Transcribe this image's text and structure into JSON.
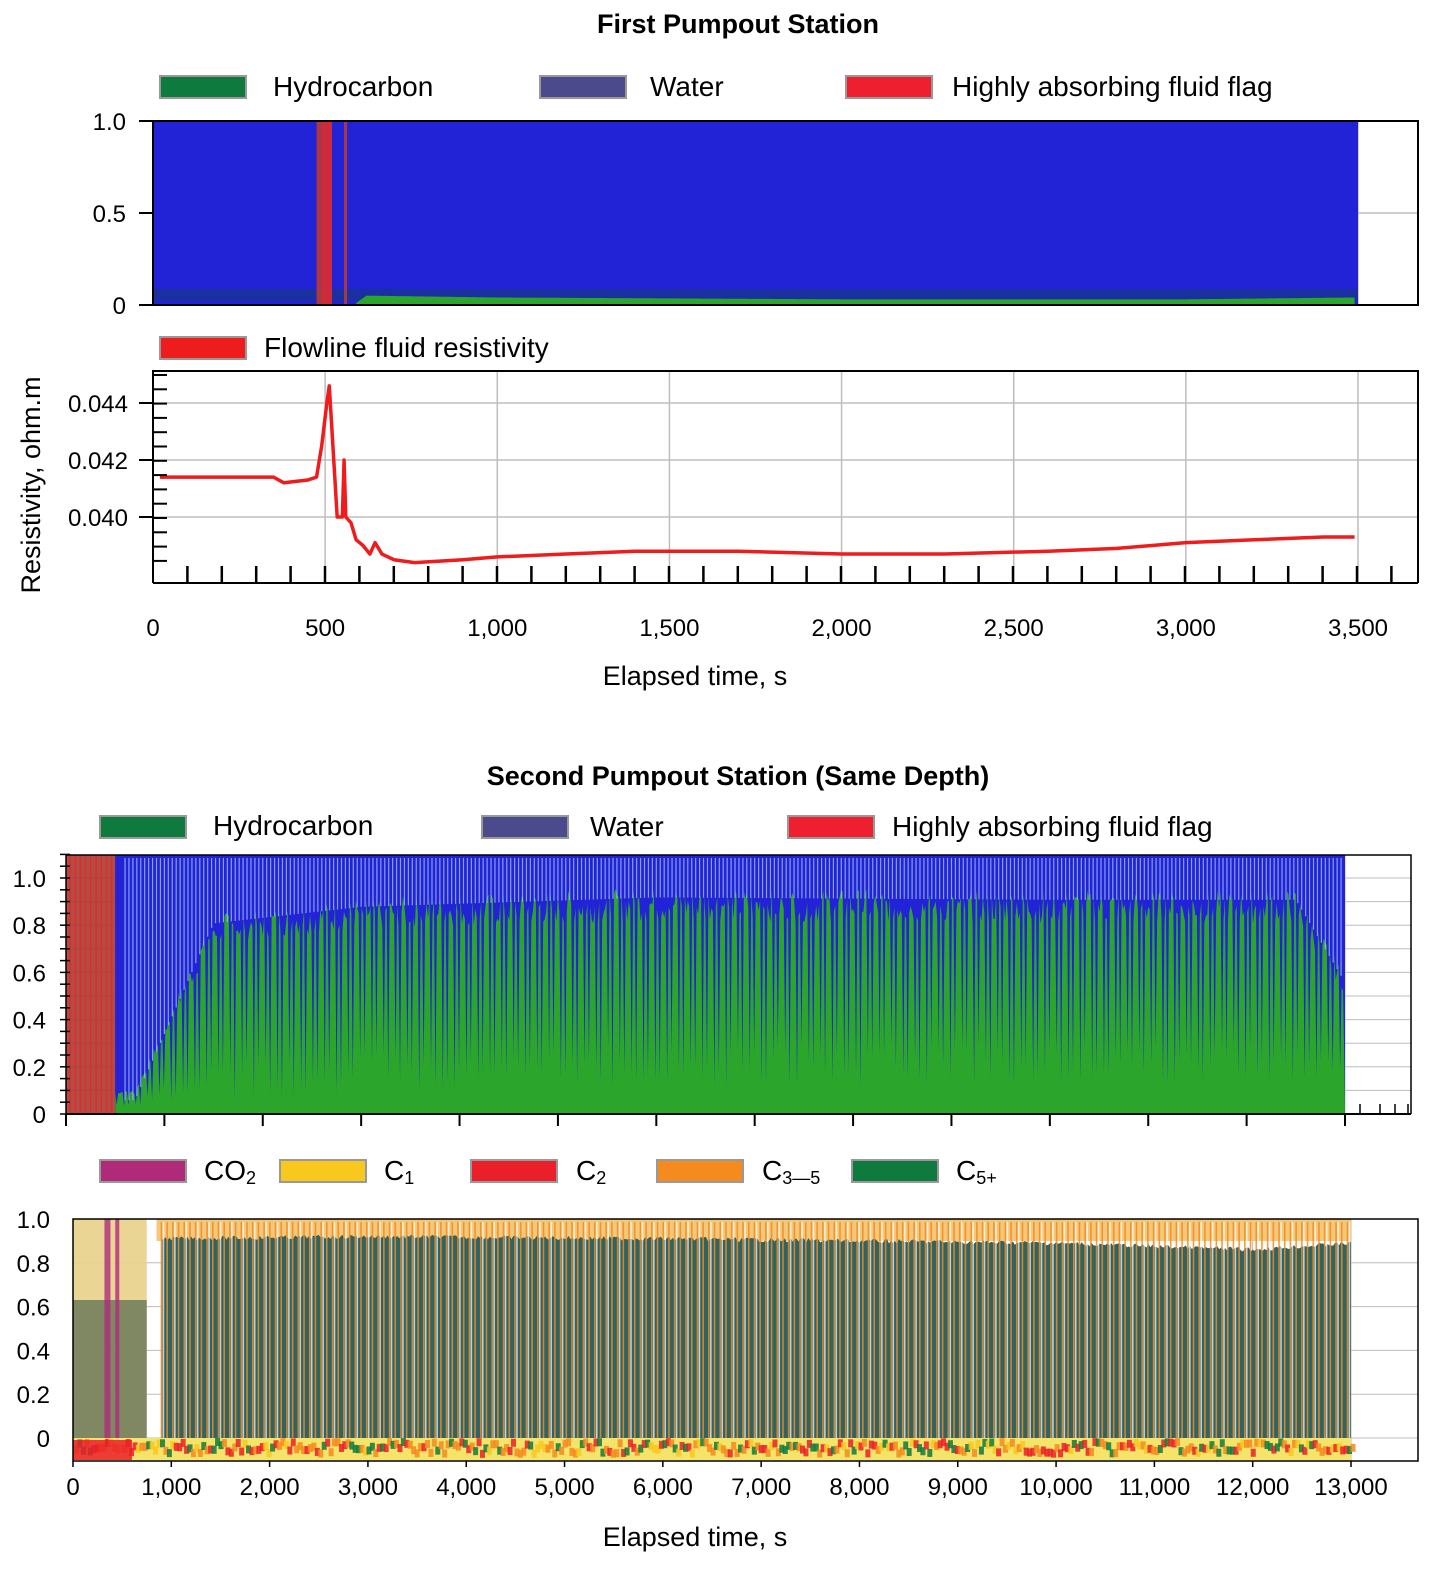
{
  "colors": {
    "hydrocarbon": "#0f7a3e",
    "water": "#4a4a8c",
    "flag": "#ee2030",
    "fill_water": "#2222d6",
    "fill_hydrocarbon": "#2ca52c",
    "resistivity": "#ee1c1c",
    "co2": "#b02a7a",
    "c1": "#f9c81e",
    "c2": "#ea1f2a",
    "c35": "#f58a1f",
    "c5plus": "#0f7a3e",
    "fill_c5plus": "#2f6465",
    "grid": "#bdbdbd"
  },
  "first_station": {
    "title": "First Pumpout Station",
    "legend": [
      "Hydrocarbon",
      "Water",
      "Highly absorbing fluid flag"
    ],
    "resistivity_legend": "Flowline fluid resistivity",
    "ylabel": "Resistivity, ohm.m",
    "xlabel": "Elapsed time, s"
  },
  "second_station": {
    "title": "Second Pumpout Station (Same Depth)",
    "legend": [
      "Hydrocarbon",
      "Water",
      "Highly absorbing fluid flag"
    ],
    "composition_legend": [
      "CO",
      "C",
      "C",
      "C",
      "C"
    ],
    "composition_legend_sub": [
      "2",
      "1",
      "2",
      "3—5",
      "5+"
    ],
    "xlabel": "Elapsed time, s"
  },
  "chart_data": [
    {
      "type": "area",
      "title": "First Pumpout Station",
      "series_names": [
        "Hydrocarbon",
        "Water",
        "Highly absorbing fluid flag"
      ],
      "xlim": [
        0,
        3500
      ],
      "ylim": [
        0,
        1.0
      ],
      "yticks": [
        "1.0",
        "0.5",
        "0"
      ],
      "hydrocarbon_fraction": [
        [
          0,
          0.0
        ],
        [
          590,
          0.0
        ],
        [
          620,
          0.04
        ],
        [
          1000,
          0.03
        ],
        [
          2000,
          0.02
        ],
        [
          3000,
          0.02
        ],
        [
          3490,
          0.03
        ]
      ],
      "flag_intervals": [
        [
          475,
          520
        ],
        [
          555,
          560
        ]
      ],
      "data_end": 3490,
      "grid": true
    },
    {
      "type": "line",
      "series": [
        {
          "name": "Flowline fluid resistivity",
          "points": [
            [
              20,
              0.0414
            ],
            [
              350,
              0.0414
            ],
            [
              380,
              0.0412
            ],
            [
              450,
              0.0413
            ],
            [
              475,
              0.0414
            ],
            [
              490,
              0.0425
            ],
            [
              505,
              0.044
            ],
            [
              512,
              0.0446
            ],
            [
              520,
              0.043
            ],
            [
              535,
              0.04
            ],
            [
              550,
              0.04
            ],
            [
              555,
              0.042
            ],
            [
              560,
              0.04
            ],
            [
              575,
              0.0398
            ],
            [
              590,
              0.0392
            ],
            [
              610,
              0.039
            ],
            [
              630,
              0.0387
            ],
            [
              645,
              0.0391
            ],
            [
              665,
              0.0387
            ],
            [
              700,
              0.0385
            ],
            [
              760,
              0.0384
            ],
            [
              900,
              0.0385
            ],
            [
              1000,
              0.0386
            ],
            [
              1200,
              0.0387
            ],
            [
              1400,
              0.0388
            ],
            [
              1700,
              0.0388
            ],
            [
              2000,
              0.0387
            ],
            [
              2300,
              0.0387
            ],
            [
              2600,
              0.0388
            ],
            [
              2800,
              0.0389
            ],
            [
              3000,
              0.0391
            ],
            [
              3200,
              0.0392
            ],
            [
              3400,
              0.0393
            ],
            [
              3490,
              0.0393
            ]
          ]
        }
      ],
      "xlabel": "Elapsed time, s",
      "ylabel": "Resistivity, ohm.m",
      "xlim": [
        0,
        3700
      ],
      "ylim": [
        0.0378,
        0.0453
      ],
      "xticks": [
        "0",
        "500",
        "1,000",
        "1,500",
        "2,000",
        "2,500",
        "3,000",
        "3,500"
      ],
      "yticks": [
        "0.044",
        "0.042",
        "0.040"
      ],
      "grid": true
    },
    {
      "type": "area",
      "title": "Second Pumpout Station (Same Depth)",
      "series_names": [
        "Hydrocarbon",
        "Water",
        "Highly absorbing fluid flag"
      ],
      "xlim": [
        0,
        13700
      ],
      "ylim": [
        0,
        1.1
      ],
      "yticks": [
        "1.0",
        "0.8",
        "0.6",
        "0.4",
        "0.2",
        "0"
      ],
      "flag_interval": [
        0,
        500
      ],
      "hydrocarbon_base_fraction": [
        [
          500,
          0.03
        ],
        [
          3000,
          0.08
        ],
        [
          6000,
          0.12
        ],
        [
          13000,
          0.12
        ]
      ],
      "hydrocarbon_peak_fraction": [
        [
          700,
          0.1
        ],
        [
          1500,
          0.85
        ],
        [
          3000,
          0.92
        ],
        [
          6000,
          0.96
        ],
        [
          10000,
          0.95
        ],
        [
          12500,
          0.95
        ],
        [
          13000,
          0.6
        ]
      ],
      "data_end": 13000,
      "grid": true
    },
    {
      "type": "area",
      "series_names": [
        "CO2",
        "C1",
        "C2",
        "C3—5",
        "C5+"
      ],
      "xlim": [
        0,
        13700
      ],
      "ylim": [
        -0.1,
        1.0
      ],
      "xticks": [
        "0",
        "1,000",
        "2,000",
        "3,000",
        "4,000",
        "5,000",
        "6,000",
        "7,000",
        "8,000",
        "9,000",
        "10,000",
        "11,000",
        "12,000",
        "13,000"
      ],
      "yticks": [
        "1.0",
        "0.8",
        "0.6",
        "0.4",
        "0.2",
        "0"
      ],
      "xlabel": "Elapsed time, s",
      "c5plus_fraction": [
        [
          900,
          0.92
        ],
        [
          3000,
          0.93
        ],
        [
          6000,
          0.92
        ],
        [
          10000,
          0.9
        ],
        [
          12000,
          0.87
        ],
        [
          13000,
          0.9
        ]
      ],
      "data_end": 13000,
      "grid": true
    }
  ]
}
